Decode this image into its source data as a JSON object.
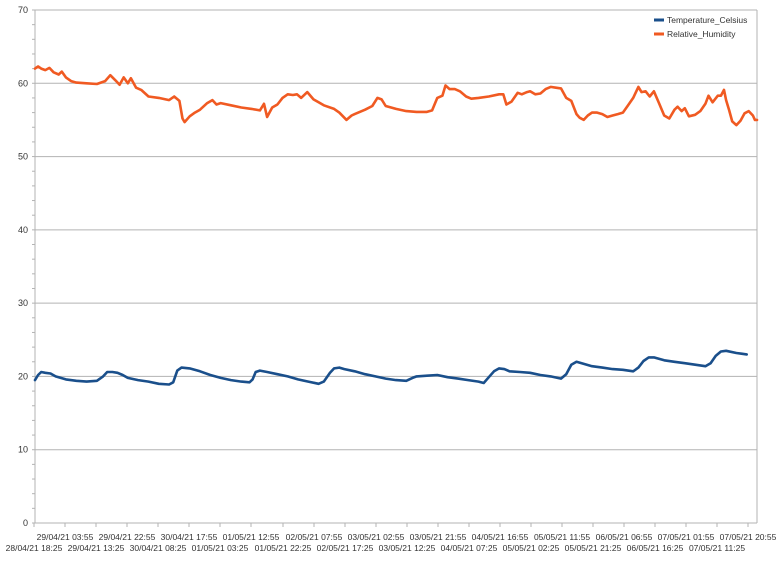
{
  "chart_data": {
    "type": "line",
    "ylim": [
      0,
      70
    ],
    "yticks": [
      "0",
      "10",
      "20",
      "30",
      "40",
      "50",
      "60",
      "70"
    ],
    "grid": true,
    "legend_position": "top-right",
    "x_ticks_row1": [
      "29/04/21 03:55",
      "29/04/21 22:55",
      "30/04/21 17:55",
      "01/05/21 12:55",
      "02/05/21 07:55",
      "03/05/21 02:55",
      "03/05/21 21:55",
      "04/05/21 16:55",
      "05/05/21 11:55",
      "06/05/21 06:55",
      "07/05/21 01:55",
      "07/05/21 20:55"
    ],
    "x_ticks_row2": [
      "28/04/21 18:25",
      "29/04/21 13:25",
      "30/04/21 08:25",
      "01/05/21 03:25",
      "01/05/21 22:25",
      "02/05/21 17:25",
      "03/05/21 12:25",
      "04/05/21 07:25",
      "05/05/21 02:25",
      "05/05/21 21:25",
      "06/05/21 16:25",
      "07/05/21 11:25"
    ],
    "series": [
      {
        "name": "Temperature_Celsius",
        "color": "#1a4f8b",
        "values": [
          [
            0.0,
            19.5
          ],
          [
            0.3,
            20.2
          ],
          [
            0.6,
            20.6
          ],
          [
            1.0,
            20.5
          ],
          [
            1.5,
            20.4
          ],
          [
            2.0,
            20.0
          ],
          [
            3.0,
            19.6
          ],
          [
            4.0,
            19.4
          ],
          [
            5.0,
            19.3
          ],
          [
            6.0,
            19.4
          ],
          [
            6.6,
            20.0
          ],
          [
            7.0,
            20.6
          ],
          [
            7.5,
            20.6
          ],
          [
            8.0,
            20.5
          ],
          [
            8.5,
            20.2
          ],
          [
            9.0,
            19.8
          ],
          [
            10.0,
            19.5
          ],
          [
            11.0,
            19.3
          ],
          [
            12.0,
            19.0
          ],
          [
            13.0,
            18.9
          ],
          [
            13.4,
            19.2
          ],
          [
            13.8,
            20.8
          ],
          [
            14.2,
            21.2
          ],
          [
            15.0,
            21.1
          ],
          [
            16.0,
            20.7
          ],
          [
            17.0,
            20.2
          ],
          [
            18.0,
            19.8
          ],
          [
            19.0,
            19.5
          ],
          [
            20.0,
            19.3
          ],
          [
            20.8,
            19.2
          ],
          [
            21.1,
            19.6
          ],
          [
            21.4,
            20.6
          ],
          [
            21.8,
            20.8
          ],
          [
            22.5,
            20.6
          ],
          [
            23.5,
            20.3
          ],
          [
            24.5,
            20.0
          ],
          [
            25.5,
            19.6
          ],
          [
            26.5,
            19.3
          ],
          [
            27.5,
            19.0
          ],
          [
            28.0,
            19.3
          ],
          [
            28.6,
            20.5
          ],
          [
            29.0,
            21.1
          ],
          [
            29.5,
            21.2
          ],
          [
            30.0,
            21.0
          ],
          [
            31.0,
            20.7
          ],
          [
            32.0,
            20.3
          ],
          [
            33.0,
            20.0
          ],
          [
            34.0,
            19.7
          ],
          [
            35.0,
            19.5
          ],
          [
            36.0,
            19.4
          ],
          [
            36.6,
            19.8
          ],
          [
            37.0,
            20.0
          ],
          [
            38.0,
            20.1
          ],
          [
            39.0,
            20.2
          ],
          [
            40.0,
            19.9
          ],
          [
            41.0,
            19.7
          ],
          [
            42.0,
            19.5
          ],
          [
            43.0,
            19.3
          ],
          [
            43.5,
            19.1
          ],
          [
            44.0,
            19.9
          ],
          [
            44.5,
            20.7
          ],
          [
            45.0,
            21.1
          ],
          [
            45.5,
            21.0
          ],
          [
            46.0,
            20.7
          ],
          [
            47.0,
            20.6
          ],
          [
            48.0,
            20.5
          ],
          [
            49.0,
            20.2
          ],
          [
            50.0,
            20.0
          ],
          [
            51.0,
            19.7
          ],
          [
            51.5,
            20.3
          ],
          [
            52.0,
            21.6
          ],
          [
            52.5,
            22.0
          ],
          [
            53.0,
            21.8
          ],
          [
            54.0,
            21.4
          ],
          [
            55.0,
            21.2
          ],
          [
            56.0,
            21.0
          ],
          [
            57.0,
            20.9
          ],
          [
            58.0,
            20.7
          ],
          [
            58.5,
            21.2
          ],
          [
            59.0,
            22.1
          ],
          [
            59.5,
            22.6
          ],
          [
            60.0,
            22.6
          ],
          [
            61.0,
            22.2
          ],
          [
            62.0,
            22.0
          ],
          [
            63.0,
            21.8
          ],
          [
            64.0,
            21.6
          ],
          [
            65.0,
            21.4
          ],
          [
            65.5,
            21.8
          ],
          [
            66.0,
            22.8
          ],
          [
            66.5,
            23.4
          ],
          [
            67.0,
            23.5
          ],
          [
            68.0,
            23.2
          ],
          [
            68.5,
            23.1
          ],
          [
            69.0,
            23.0
          ]
        ]
      },
      {
        "name": "Relative_Humidity",
        "color": "#f05a22",
        "values": [
          [
            0.0,
            62.0
          ],
          [
            0.3,
            62.3
          ],
          [
            0.6,
            62.0
          ],
          [
            1.0,
            61.8
          ],
          [
            1.4,
            62.1
          ],
          [
            1.8,
            61.5
          ],
          [
            2.3,
            61.2
          ],
          [
            2.6,
            61.6
          ],
          [
            3.0,
            60.8
          ],
          [
            3.5,
            60.3
          ],
          [
            4.0,
            60.1
          ],
          [
            5.0,
            60.0
          ],
          [
            6.0,
            59.9
          ],
          [
            6.8,
            60.3
          ],
          [
            7.3,
            61.1
          ],
          [
            7.8,
            60.4
          ],
          [
            8.2,
            59.8
          ],
          [
            8.6,
            60.8
          ],
          [
            9.0,
            60.0
          ],
          [
            9.3,
            60.7
          ],
          [
            9.8,
            59.4
          ],
          [
            10.3,
            59.1
          ],
          [
            11.0,
            58.2
          ],
          [
            12.0,
            58.0
          ],
          [
            13.0,
            57.7
          ],
          [
            13.5,
            58.2
          ],
          [
            14.0,
            57.6
          ],
          [
            14.3,
            55.2
          ],
          [
            14.5,
            54.7
          ],
          [
            15.0,
            55.5
          ],
          [
            15.5,
            56.0
          ],
          [
            16.0,
            56.4
          ],
          [
            16.7,
            57.3
          ],
          [
            17.2,
            57.7
          ],
          [
            17.6,
            57.1
          ],
          [
            18.0,
            57.3
          ],
          [
            19.0,
            57.0
          ],
          [
            20.0,
            56.7
          ],
          [
            21.0,
            56.5
          ],
          [
            21.8,
            56.3
          ],
          [
            22.2,
            57.2
          ],
          [
            22.5,
            55.4
          ],
          [
            23.0,
            56.7
          ],
          [
            23.5,
            57.1
          ],
          [
            24.0,
            58.0
          ],
          [
            24.5,
            58.5
          ],
          [
            25.0,
            58.4
          ],
          [
            25.4,
            58.5
          ],
          [
            25.8,
            58.0
          ],
          [
            26.4,
            58.8
          ],
          [
            27.0,
            57.8
          ],
          [
            27.5,
            57.4
          ],
          [
            28.0,
            57.0
          ],
          [
            29.0,
            56.5
          ],
          [
            29.5,
            56.0
          ],
          [
            30.2,
            55.0
          ],
          [
            30.7,
            55.6
          ],
          [
            31.0,
            55.8
          ],
          [
            32.0,
            56.4
          ],
          [
            32.7,
            56.9
          ],
          [
            33.2,
            58.0
          ],
          [
            33.6,
            57.8
          ],
          [
            34.0,
            56.9
          ],
          [
            35.0,
            56.5
          ],
          [
            36.0,
            56.2
          ],
          [
            37.0,
            56.1
          ],
          [
            38.0,
            56.1
          ],
          [
            38.5,
            56.3
          ],
          [
            39.0,
            58.0
          ],
          [
            39.5,
            58.3
          ],
          [
            39.8,
            59.7
          ],
          [
            40.2,
            59.2
          ],
          [
            40.7,
            59.2
          ],
          [
            41.2,
            58.9
          ],
          [
            41.8,
            58.2
          ],
          [
            42.3,
            57.9
          ],
          [
            43.0,
            58.0
          ],
          [
            44.0,
            58.2
          ],
          [
            45.0,
            58.5
          ],
          [
            45.4,
            58.5
          ],
          [
            45.7,
            57.1
          ],
          [
            46.2,
            57.5
          ],
          [
            46.8,
            58.7
          ],
          [
            47.2,
            58.5
          ],
          [
            47.7,
            58.8
          ],
          [
            48.0,
            58.9
          ],
          [
            48.5,
            58.5
          ],
          [
            49.0,
            58.6
          ],
          [
            49.5,
            59.2
          ],
          [
            50.0,
            59.5
          ],
          [
            50.5,
            59.4
          ],
          [
            51.0,
            59.3
          ],
          [
            51.5,
            58.0
          ],
          [
            52.0,
            57.6
          ],
          [
            52.5,
            55.8
          ],
          [
            52.8,
            55.3
          ],
          [
            53.2,
            55.0
          ],
          [
            53.6,
            55.6
          ],
          [
            54.0,
            56.0
          ],
          [
            54.5,
            56.0
          ],
          [
            55.0,
            55.8
          ],
          [
            55.5,
            55.4
          ],
          [
            56.0,
            55.6
          ],
          [
            56.5,
            55.8
          ],
          [
            57.0,
            56.0
          ],
          [
            57.5,
            57.0
          ],
          [
            58.0,
            58.0
          ],
          [
            58.5,
            59.5
          ],
          [
            58.8,
            58.8
          ],
          [
            59.2,
            58.9
          ],
          [
            59.6,
            58.2
          ],
          [
            60.0,
            58.9
          ],
          [
            60.5,
            57.3
          ],
          [
            61.0,
            55.6
          ],
          [
            61.5,
            55.2
          ],
          [
            62.0,
            56.4
          ],
          [
            62.3,
            56.8
          ],
          [
            62.7,
            56.2
          ],
          [
            63.0,
            56.6
          ],
          [
            63.4,
            55.5
          ],
          [
            64.0,
            55.7
          ],
          [
            64.5,
            56.2
          ],
          [
            65.0,
            57.2
          ],
          [
            65.3,
            58.3
          ],
          [
            65.7,
            57.4
          ],
          [
            66.2,
            58.3
          ],
          [
            66.5,
            58.3
          ],
          [
            66.8,
            59.1
          ],
          [
            67.0,
            57.7
          ],
          [
            67.3,
            56.3
          ],
          [
            67.6,
            54.8
          ],
          [
            68.0,
            54.3
          ],
          [
            68.4,
            54.9
          ],
          [
            68.8,
            55.9
          ],
          [
            69.2,
            56.2
          ],
          [
            69.6,
            55.6
          ],
          [
            69.8,
            55.0
          ],
          [
            70.0,
            55.0
          ]
        ]
      }
    ]
  }
}
